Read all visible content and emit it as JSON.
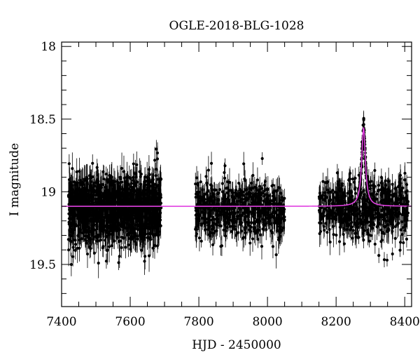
{
  "chart_data": {
    "type": "scatter",
    "title": "OGLE-2018-BLG-1028",
    "xlabel": "HJD - 2450000",
    "ylabel": "I magnitude",
    "xlim": [
      7400,
      8420
    ],
    "ylim": [
      19.79,
      17.97
    ],
    "y_inverted": true,
    "x_ticks": [
      7400,
      7600,
      7800,
      8000,
      8200,
      8400
    ],
    "x_tick_labels": [
      "7400",
      "7600",
      "7800",
      "8000",
      "8200",
      "8400"
    ],
    "y_ticks": [
      18,
      18.5,
      19,
      19.5
    ],
    "y_tick_labels": [
      "18",
      "18.5",
      "19",
      "19.5"
    ],
    "grid": false,
    "legend": "none",
    "colors": {
      "points": "#000000",
      "model": "#e040e0"
    },
    "series": [
      {
        "type": "scatter-with-errorbars",
        "clusters": [
          {
            "x_range": [
              7420,
              7690
            ],
            "baseline": 19.12,
            "scatter": 0.12,
            "error": 0.08,
            "n": 1400
          },
          {
            "x_range": [
              7790,
              8050
            ],
            "baseline": 19.12,
            "scatter": 0.1,
            "error": 0.07,
            "n": 650
          },
          {
            "x_range": [
              8150,
              8410
            ],
            "baseline": 19.12,
            "scatter": 0.1,
            "error": 0.07,
            "n": 650
          }
        ],
        "peak": {
          "t0": 8280,
          "min_magnitude": 18.37
        }
      },
      {
        "type": "line",
        "baseline": 19.1,
        "t0": 8280,
        "peak_magnitude": 18.56,
        "tE": 6.5,
        "x_range": [
          7400,
          8420
        ]
      }
    ]
  }
}
